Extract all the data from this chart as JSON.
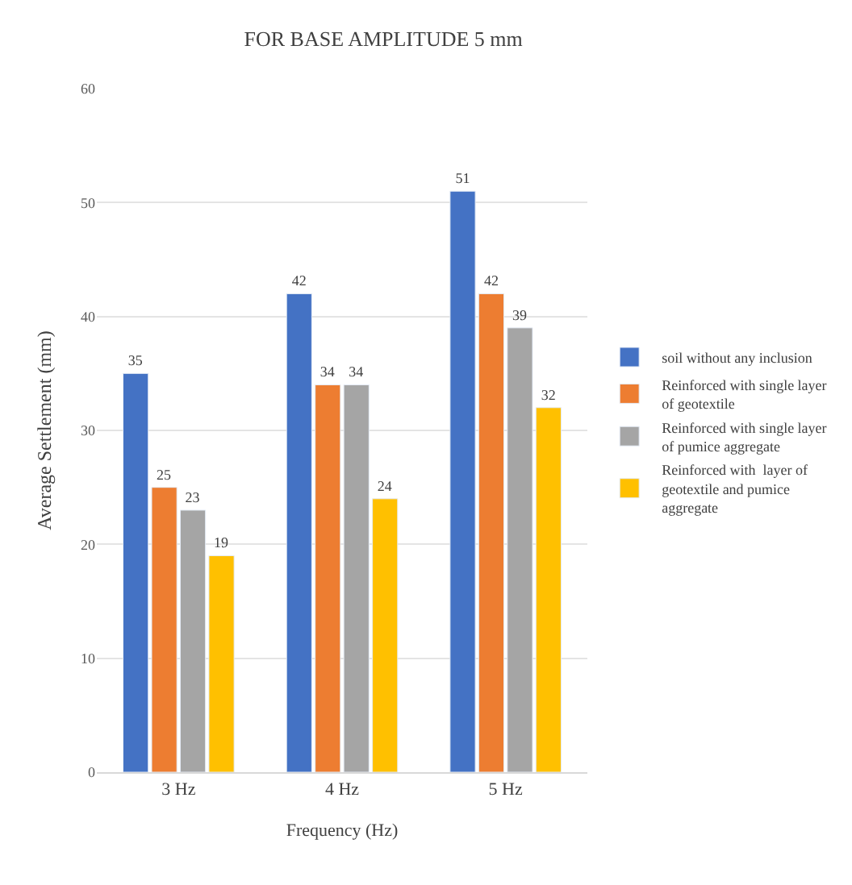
{
  "chart_data": {
    "type": "bar",
    "title": "FOR BASE AMPLITUDE 5 mm",
    "xlabel": "Frequency (Hz)",
    "ylabel": "Average Settlement (mm)",
    "categories": [
      "3 Hz",
      "4 Hz",
      "5 Hz"
    ],
    "series": [
      {
        "name": "soil without any inclusion",
        "color": "#4472c4",
        "values": [
          35,
          42,
          51
        ]
      },
      {
        "name": "Reinforced with single layer of geotextile",
        "color": "#ed7d31",
        "values": [
          25,
          34,
          42
        ]
      },
      {
        "name": "Reinforced with single layer of pumice aggregate",
        "color": "#a5a5a5",
        "values": [
          23,
          34,
          39
        ]
      },
      {
        "name": "Reinforced with  layer of geotextile and pumice aggregate",
        "color": "#ffc000",
        "values": [
          19,
          24,
          32
        ]
      }
    ],
    "ylim": [
      0,
      60
    ],
    "yticks": [
      0,
      10,
      20,
      30,
      40,
      50,
      60
    ],
    "grid": "y",
    "legend": "right",
    "data_labels": true
  }
}
